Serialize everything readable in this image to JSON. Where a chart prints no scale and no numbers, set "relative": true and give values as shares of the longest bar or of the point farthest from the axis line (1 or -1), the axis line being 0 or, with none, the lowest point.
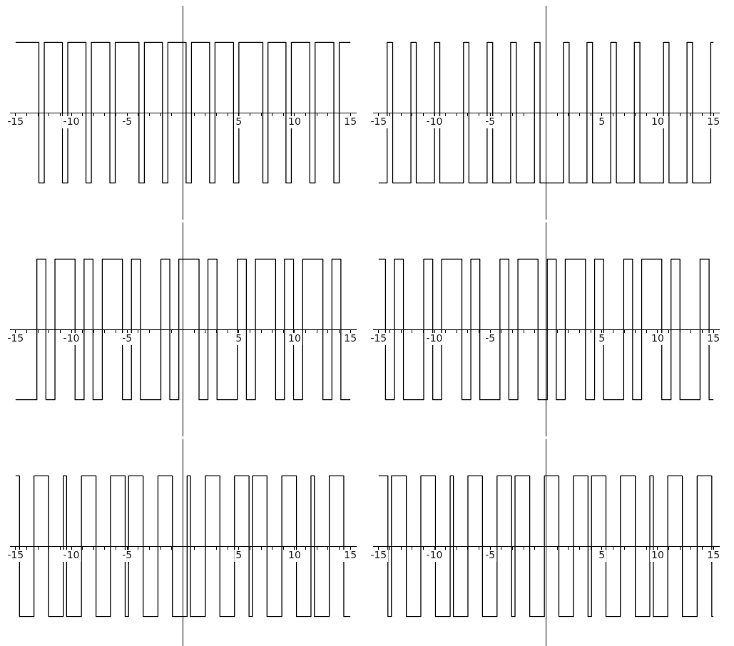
{
  "chart_data": [
    {
      "type": "step",
      "relative": true,
      "color": "#000000",
      "xlim": [
        -15.5,
        15.5
      ],
      "xticks": [
        -15,
        {
          "value": -14,
          "label": null
        },
        {
          "value": -13,
          "label": null
        },
        {
          "value": -12,
          "label": null
        },
        {
          "value": -11,
          "label": null
        },
        -10,
        {
          "value": -9,
          "label": null
        },
        {
          "value": -8,
          "label": null
        },
        {
          "value": -7,
          "label": null
        },
        {
          "value": -6,
          "label": null
        },
        -5,
        {
          "value": -4,
          "label": null
        },
        {
          "value": -3,
          "label": null
        },
        {
          "value": -2,
          "label": null
        },
        {
          "value": -1,
          "label": null
        },
        {
          "value": 1,
          "label": null
        },
        {
          "value": 2,
          "label": null
        },
        {
          "value": 3,
          "label": null
        },
        {
          "value": 4,
          "label": null
        },
        5,
        {
          "value": 6,
          "label": null
        },
        {
          "value": 7,
          "label": null
        },
        {
          "value": 8,
          "label": null
        },
        {
          "value": 9,
          "label": null
        },
        10,
        {
          "value": 11,
          "label": null
        },
        {
          "value": 12,
          "label": null
        },
        {
          "value": 13,
          "label": null
        },
        {
          "value": 14,
          "label": null
        },
        15
      ],
      "x": [
        -15,
        -12.91,
        -12.43,
        -10.8,
        -10.32,
        -8.69,
        -8.21,
        -6.55,
        -6.07,
        -3.94,
        -3.46,
        -1.83,
        -1.35,
        0.28,
        0.76,
        2.39,
        2.87,
        4.53,
        5.01,
        7.16,
        7.62,
        9.23,
        9.71,
        11.37,
        11.84,
        13.52,
        14.0,
        15
      ],
      "values": [
        1,
        -1,
        1,
        -1,
        1,
        -1,
        1,
        -1,
        1,
        -1,
        1,
        -1,
        1,
        -1,
        1,
        -1,
        1,
        -1,
        1,
        -1,
        1,
        -1,
        1,
        -1,
        1,
        -1,
        1,
        1
      ]
    },
    {
      "type": "step",
      "relative": true,
      "color": "#000000",
      "xlim": [
        -15.5,
        15.5
      ],
      "xticks": [
        -15,
        {
          "value": -14,
          "label": null
        },
        {
          "value": -13,
          "label": null
        },
        {
          "value": -12,
          "label": null
        },
        {
          "value": -11,
          "label": null
        },
        -10,
        {
          "value": -9,
          "label": null
        },
        {
          "value": -8,
          "label": null
        },
        {
          "value": -7,
          "label": null
        },
        {
          "value": -6,
          "label": null
        },
        -5,
        {
          "value": -4,
          "label": null
        },
        {
          "value": -3,
          "label": null
        },
        {
          "value": -2,
          "label": null
        },
        {
          "value": -1,
          "label": null
        },
        {
          "value": 1,
          "label": null
        },
        {
          "value": 2,
          "label": null
        },
        {
          "value": 3,
          "label": null
        },
        {
          "value": 4,
          "label": null
        },
        5,
        {
          "value": 6,
          "label": null
        },
        {
          "value": 7,
          "label": null
        },
        {
          "value": 8,
          "label": null
        },
        {
          "value": 9,
          "label": null
        },
        10,
        {
          "value": 11,
          "label": null
        },
        {
          "value": 12,
          "label": null
        },
        {
          "value": 13,
          "label": null
        },
        {
          "value": 14,
          "label": null
        },
        15
      ],
      "x": [
        -15,
        -14.24,
        -13.74,
        -12.11,
        -11.63,
        -10.0,
        -9.52,
        -7.39,
        -6.91,
        -5.28,
        -4.78,
        -3.17,
        -2.67,
        -1.04,
        -0.54,
        1.57,
        2.07,
        3.67,
        4.17,
        5.8,
        6.3,
        7.91,
        8.41,
        10.52,
        11.02,
        12.63,
        13.13,
        14.76,
        15
      ],
      "values": [
        -1,
        1,
        -1,
        1,
        -1,
        1,
        -1,
        1,
        -1,
        1,
        -1,
        1,
        -1,
        1,
        -1,
        1,
        -1,
        1,
        -1,
        1,
        -1,
        1,
        -1,
        1,
        -1,
        1,
        -1,
        1,
        1
      ]
    },
    {
      "type": "step",
      "relative": true,
      "color": "#000000",
      "xlim": [
        -15.5,
        15.5
      ],
      "xticks": [
        -15,
        {
          "value": -14,
          "label": null
        },
        {
          "value": -13,
          "label": null
        },
        {
          "value": -12,
          "label": null
        },
        {
          "value": -11,
          "label": null
        },
        -10,
        {
          "value": -9,
          "label": null
        },
        {
          "value": -8,
          "label": null
        },
        {
          "value": -7,
          "label": null
        },
        {
          "value": -6,
          "label": null
        },
        -5,
        {
          "value": -4,
          "label": null
        },
        {
          "value": -3,
          "label": null
        },
        {
          "value": -2,
          "label": null
        },
        {
          "value": -1,
          "label": null
        },
        {
          "value": 1,
          "label": null
        },
        {
          "value": 2,
          "label": null
        },
        {
          "value": 3,
          "label": null
        },
        {
          "value": 4,
          "label": null
        },
        5,
        {
          "value": 6,
          "label": null
        },
        {
          "value": 7,
          "label": null
        },
        {
          "value": 8,
          "label": null
        },
        {
          "value": 9,
          "label": null
        },
        10,
        {
          "value": 11,
          "label": null
        },
        {
          "value": 12,
          "label": null
        },
        {
          "value": 13,
          "label": null
        },
        {
          "value": 14,
          "label": null
        },
        15
      ],
      "x": [
        -15,
        -13.09,
        -12.28,
        -11.47,
        -9.67,
        -8.86,
        -8.06,
        -7.23,
        -5.42,
        -4.62,
        -3.81,
        -1.98,
        -1.18,
        -0.37,
        1.44,
        2.24,
        3.05,
        4.88,
        5.68,
        6.49,
        8.3,
        9.1,
        9.91,
        10.73,
        12.54,
        13.35,
        14.15,
        15
      ],
      "values": [
        -1,
        1,
        -1,
        1,
        -1,
        1,
        -1,
        1,
        -1,
        1,
        -1,
        1,
        -1,
        1,
        -1,
        1,
        -1,
        1,
        -1,
        1,
        -1,
        1,
        -1,
        1,
        -1,
        1,
        -1,
        -1
      ]
    },
    {
      "type": "step",
      "relative": true,
      "color": "#000000",
      "xlim": [
        -15.5,
        15.5
      ],
      "xticks": [
        -15,
        {
          "value": -14,
          "label": null
        },
        {
          "value": -13,
          "label": null
        },
        {
          "value": -12,
          "label": null
        },
        {
          "value": -11,
          "label": null
        },
        -10,
        {
          "value": -9,
          "label": null
        },
        {
          "value": -8,
          "label": null
        },
        {
          "value": -7,
          "label": null
        },
        {
          "value": -6,
          "label": null
        },
        -5,
        {
          "value": -4,
          "label": null
        },
        {
          "value": -3,
          "label": null
        },
        {
          "value": -2,
          "label": null
        },
        {
          "value": -1,
          "label": null
        },
        {
          "value": 1,
          "label": null
        },
        {
          "value": 2,
          "label": null
        },
        {
          "value": 3,
          "label": null
        },
        {
          "value": 4,
          "label": null
        },
        5,
        {
          "value": 6,
          "label": null
        },
        {
          "value": 7,
          "label": null
        },
        {
          "value": 8,
          "label": null
        },
        {
          "value": 9,
          "label": null
        },
        10,
        {
          "value": 11,
          "label": null
        },
        {
          "value": 12,
          "label": null
        },
        {
          "value": 13,
          "label": null
        },
        {
          "value": 14,
          "label": null
        },
        15
      ],
      "x": [
        -15,
        -14.39,
        -13.59,
        -12.78,
        -10.96,
        -10.15,
        -9.35,
        -7.54,
        -6.74,
        -5.93,
        -4.13,
        -3.33,
        -2.52,
        -0.72,
        0.11,
        0.91,
        1.72,
        3.54,
        4.35,
        5.15,
        6.96,
        7.76,
        8.57,
        10.37,
        11.2,
        12.0,
        13.8,
        14.61,
        15
      ],
      "values": [
        1,
        -1,
        1,
        -1,
        1,
        -1,
        1,
        -1,
        1,
        -1,
        1,
        -1,
        1,
        -1,
        1,
        -1,
        1,
        -1,
        1,
        -1,
        1,
        -1,
        1,
        -1,
        1,
        -1,
        1,
        -1,
        -1
      ]
    },
    {
      "type": "step",
      "relative": true,
      "color": "#000000",
      "xlim": [
        -15.5,
        15.5
      ],
      "xticks": [
        -15,
        {
          "value": -14,
          "label": null
        },
        {
          "value": -13,
          "label": null
        },
        {
          "value": -12,
          "label": null
        },
        {
          "value": -11,
          "label": null
        },
        -10,
        {
          "value": -9,
          "label": null
        },
        {
          "value": -8,
          "label": null
        },
        {
          "value": -7,
          "label": null
        },
        {
          "value": -6,
          "label": null
        },
        -5,
        {
          "value": -4,
          "label": null
        },
        {
          "value": -3,
          "label": null
        },
        {
          "value": -2,
          "label": null
        },
        {
          "value": -1,
          "label": null
        },
        {
          "value": 1,
          "label": null
        },
        {
          "value": 2,
          "label": null
        },
        {
          "value": 3,
          "label": null
        },
        {
          "value": 4,
          "label": null
        },
        5,
        {
          "value": 6,
          "label": null
        },
        {
          "value": 7,
          "label": null
        },
        {
          "value": 8,
          "label": null
        },
        {
          "value": 9,
          "label": null
        },
        10,
        {
          "value": 11,
          "label": null
        },
        {
          "value": 12,
          "label": null
        },
        {
          "value": 13,
          "label": null
        },
        {
          "value": 14,
          "label": null
        },
        15
      ],
      "x": [
        -15,
        -14.65,
        -13.35,
        -12.04,
        -10.73,
        -10.43,
        -9.1,
        -7.79,
        -6.49,
        -5.18,
        -4.88,
        -3.57,
        -2.24,
        -0.94,
        0.37,
        0.67,
        2.0,
        3.31,
        4.62,
        5.92,
        6.23,
        7.53,
        8.86,
        10.17,
        11.47,
        11.78,
        13.11,
        14.41,
        15
      ],
      "values": [
        1,
        -1,
        1,
        -1,
        1,
        -1,
        1,
        -1,
        1,
        -1,
        1,
        -1,
        1,
        -1,
        1,
        -1,
        1,
        -1,
        1,
        -1,
        1,
        -1,
        1,
        -1,
        1,
        -1,
        1,
        -1,
        -1
      ]
    },
    {
      "type": "step",
      "relative": true,
      "color": "#000000",
      "xlim": [
        -15.5,
        15.5
      ],
      "xticks": [
        -15,
        {
          "value": -14,
          "label": null
        },
        {
          "value": -13,
          "label": null
        },
        {
          "value": -12,
          "label": null
        },
        {
          "value": -11,
          "label": null
        },
        -10,
        {
          "value": -9,
          "label": null
        },
        {
          "value": -8,
          "label": null
        },
        {
          "value": -7,
          "label": null
        },
        {
          "value": -6,
          "label": null
        },
        -5,
        {
          "value": -4,
          "label": null
        },
        {
          "value": -3,
          "label": null
        },
        {
          "value": -2,
          "label": null
        },
        {
          "value": -1,
          "label": null
        },
        {
          "value": 1,
          "label": null
        },
        {
          "value": 2,
          "label": null
        },
        {
          "value": 3,
          "label": null
        },
        {
          "value": 4,
          "label": null
        },
        5,
        {
          "value": 6,
          "label": null
        },
        {
          "value": 7,
          "label": null
        },
        {
          "value": 8,
          "label": null
        },
        {
          "value": 9,
          "label": null
        },
        10,
        {
          "value": 11,
          "label": null
        },
        {
          "value": 12,
          "label": null
        },
        {
          "value": 13,
          "label": null
        },
        {
          "value": 14,
          "label": null
        },
        15
      ],
      "x": [
        -15,
        -14.17,
        -13.85,
        -12.52,
        -11.22,
        -9.91,
        -8.59,
        -8.3,
        -7.0,
        -5.7,
        -4.39,
        -3.09,
        -2.78,
        -1.46,
        -0.15,
        1.15,
        2.46,
        3.76,
        4.07,
        5.37,
        6.67,
        8.0,
        9.3,
        9.61,
        10.91,
        12.22,
        13.54,
        14.85,
        15
      ],
      "values": [
        1,
        -1,
        1,
        -1,
        1,
        -1,
        1,
        -1,
        1,
        -1,
        1,
        -1,
        1,
        -1,
        1,
        -1,
        1,
        -1,
        1,
        -1,
        1,
        -1,
        1,
        -1,
        1,
        -1,
        1,
        -1,
        -1
      ]
    }
  ]
}
